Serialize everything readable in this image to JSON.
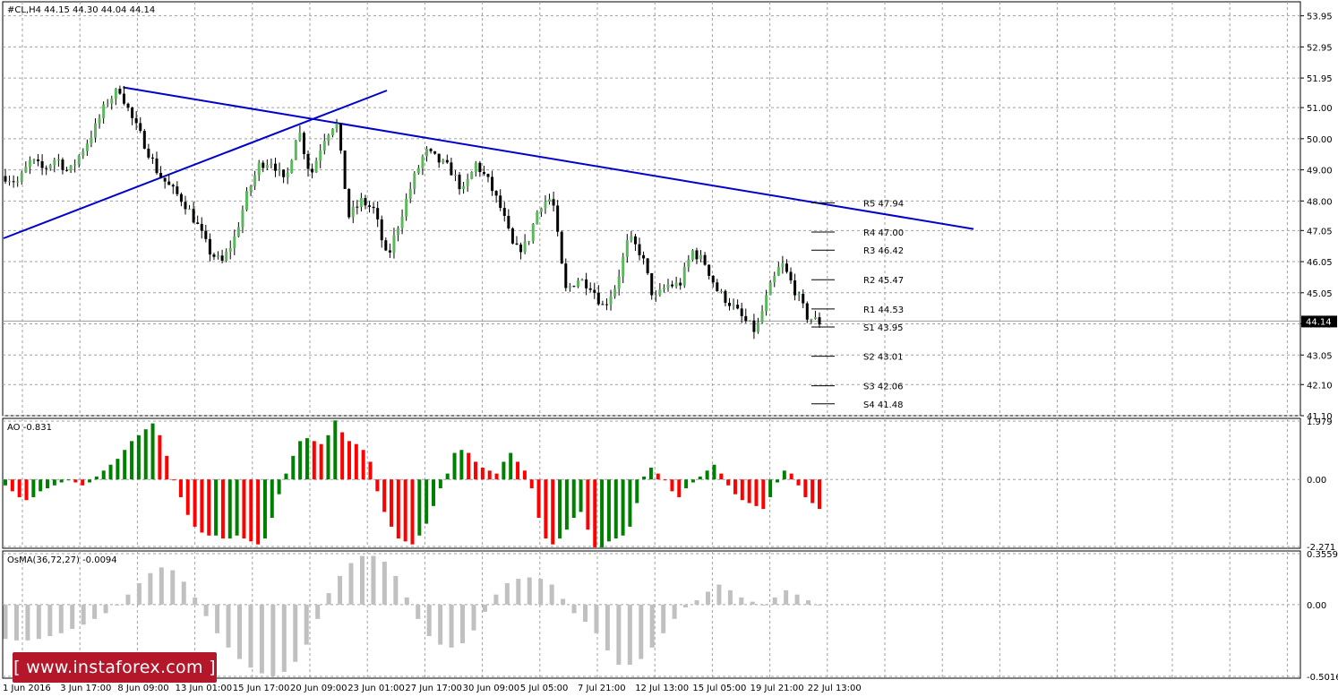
{
  "chart_data": [
    {
      "type": "candlestick",
      "header": "#CL,H4  44.15 44.30 44.04 44.14",
      "ylim": [
        41.1,
        54.4
      ],
      "y_ticks": [
        "53.95",
        "52.95",
        "51.95",
        "51.00",
        "50.00",
        "49.00",
        "48.00",
        "47.05",
        "46.05",
        "45.05",
        "44.05",
        "43.05",
        "42.10",
        "41.10"
      ],
      "current_price": "44.14",
      "x_ticks": [
        "1 Jun 2016",
        "3 Jun 17:00",
        "8 Jun 09:00",
        "13 Jun 01:00",
        "15 Jun 17:00",
        "20 Jun 09:00",
        "23 Jun 01:00",
        "27 Jun 17:00",
        "30 Jun 09:00",
        "5 Jul 05:00",
        "7 Jul 21:00",
        "12 Jul 13:00",
        "15 Jul 05:00",
        "19 Jul 21:00",
        "22 Jul 13:00"
      ],
      "close_path": [
        48.8,
        48.6,
        49.3,
        49.0,
        49.4,
        48.9,
        49.6,
        50.3,
        51.2,
        51.6,
        50.6,
        49.8,
        48.9,
        48.4,
        48.0,
        47.3,
        46.4,
        46.0,
        46.8,
        48.2,
        49.2,
        49.3,
        48.5,
        50.4,
        48.8,
        50.0,
        50.6,
        47.5,
        48.0,
        47.7,
        46.1,
        47.4,
        48.6,
        49.6,
        49.3,
        49.0,
        48.3,
        49.2,
        48.6,
        47.7,
        46.4,
        46.6,
        47.9,
        48.1,
        45.1,
        45.5,
        45.3,
        44.6,
        45.3,
        46.8,
        46.3,
        44.8,
        45.3,
        45.3,
        46.4,
        46.0,
        45.1,
        44.7,
        44.2,
        43.8,
        45.1,
        46.0,
        45.2,
        44.3,
        44.1
      ],
      "levels": [
        {
          "label": "R5 47.94",
          "value": 47.94
        },
        {
          "label": "R4 47.00",
          "value": 47.0
        },
        {
          "label": "R3 46.42",
          "value": 46.42
        },
        {
          "label": "R2 45.47",
          "value": 45.47
        },
        {
          "label": "R1 44.53",
          "value": 44.53
        },
        {
          "label": "S1 43.95",
          "value": 43.95
        },
        {
          "label": "S2 43.01",
          "value": 43.01
        },
        {
          "label": "S3 42.06",
          "value": 42.06
        },
        {
          "label": "S4 41.48",
          "value": 41.48
        }
      ],
      "trendlines": [
        {
          "name": "resistance",
          "from": [
            "8 Jun 09:00",
            51.65
          ],
          "to": [
            "25 Jul",
            47.1
          ]
        },
        {
          "name": "support",
          "from": [
            "1 Jun 2016",
            46.8
          ],
          "to": [
            "24 Jun",
            51.55
          ]
        }
      ],
      "grid": true
    },
    {
      "type": "histogram",
      "header": "AO -0.831",
      "ylim": [
        -2.271,
        1.979
      ],
      "y_ticks": [
        "1.979",
        "0.00",
        "-2.271"
      ],
      "values": [
        -0.2,
        -0.4,
        -0.6,
        -0.7,
        -0.6,
        -0.4,
        -0.3,
        -0.2,
        -0.1,
        0.0,
        -0.1,
        -0.2,
        -0.1,
        0.1,
        0.3,
        0.5,
        0.7,
        1.0,
        1.3,
        1.5,
        1.7,
        1.9,
        1.5,
        0.8,
        0.0,
        -0.6,
        -1.2,
        -1.6,
        -1.8,
        -1.9,
        -1.9,
        -2.0,
        -2.0,
        -1.9,
        -2.0,
        -2.1,
        -2.2,
        -2.0,
        -1.3,
        -0.5,
        0.2,
        0.8,
        1.3,
        1.4,
        1.3,
        1.2,
        1.5,
        2.0,
        1.6,
        1.3,
        1.2,
        1.0,
        0.6,
        -0.4,
        -1.1,
        -1.6,
        -2.0,
        -2.1,
        -2.2,
        -1.9,
        -1.5,
        -0.9,
        -0.3,
        0.2,
        0.9,
        1.0,
        0.9,
        0.6,
        0.4,
        0.3,
        0.2,
        0.6,
        0.9,
        0.6,
        0.3,
        -0.3,
        -1.3,
        -2.0,
        -2.2,
        -2.0,
        -1.7,
        -1.3,
        -1.1,
        -1.7,
        -2.3,
        -2.3,
        -2.1,
        -2.0,
        -1.9,
        -1.6,
        -0.8,
        0.1,
        0.4,
        0.2,
        0.0,
        -0.4,
        -0.6,
        -0.3,
        -0.1,
        0.1,
        0.3,
        0.5,
        0.2,
        -0.2,
        -0.5,
        -0.7,
        -0.8,
        -0.9,
        -1.0,
        -0.6,
        -0.1,
        0.3,
        0.2,
        -0.2,
        -0.6,
        -0.8,
        -1.0
      ],
      "colors": {
        "up": "#008000",
        "down": "#ff0000"
      },
      "grid": true
    },
    {
      "type": "histogram",
      "header": "OsMA(36,72,27) -0.0094",
      "ylim": [
        -0.5016,
        0.3559
      ],
      "y_ticks": [
        "0.3559",
        "0.00",
        "-0.5016"
      ],
      "values": [
        -0.24,
        -0.25,
        -0.25,
        -0.24,
        -0.22,
        -0.2,
        -0.17,
        -0.14,
        -0.1,
        -0.06,
        0.0,
        0.07,
        0.15,
        0.22,
        0.26,
        0.24,
        0.16,
        0.05,
        -0.08,
        -0.2,
        -0.3,
        -0.38,
        -0.44,
        -0.48,
        -0.5,
        -0.47,
        -0.4,
        -0.28,
        -0.1,
        0.08,
        0.2,
        0.29,
        0.34,
        0.34,
        0.3,
        0.2,
        0.05,
        -0.1,
        -0.22,
        -0.28,
        -0.3,
        -0.27,
        -0.18,
        -0.05,
        0.07,
        0.15,
        0.18,
        0.19,
        0.18,
        0.14,
        0.04,
        -0.06,
        -0.12,
        -0.2,
        -0.32,
        -0.42,
        -0.42,
        -0.38,
        -0.3,
        -0.2,
        -0.1,
        -0.02,
        0.03,
        0.09,
        0.14,
        0.1,
        0.05,
        0.02,
        0.0,
        0.05,
        0.1,
        0.07,
        0.03,
        0.0
      ],
      "color": "#c0c0c0",
      "grid": true
    }
  ],
  "watermark": "[ www.instaforex.com ]"
}
